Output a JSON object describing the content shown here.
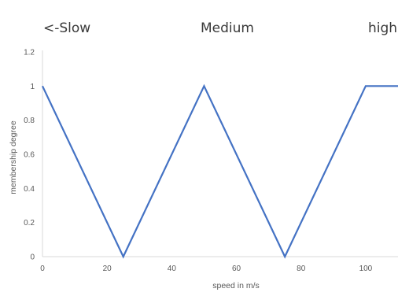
{
  "chart_data": {
    "type": "line",
    "title": "",
    "xlabel": "speed in m/s",
    "ylabel": "membership degree",
    "xlim": [
      0,
      110
    ],
    "ylim": [
      0,
      1.2
    ],
    "x_ticks": [
      "0",
      "20",
      "40",
      "60",
      "80",
      "100"
    ],
    "y_ticks": [
      "0",
      "0.2",
      "0.4",
      "0.6",
      "0.8",
      "1",
      "1.2"
    ],
    "grid": false,
    "legend": "none",
    "set_labels": [
      "<-Slow",
      "Medium",
      "high"
    ],
    "series": [
      {
        "color": "#4472c4",
        "points": [
          [
            0,
            1
          ],
          [
            25,
            0
          ],
          [
            50,
            1
          ],
          [
            75,
            0
          ],
          [
            100,
            1
          ],
          [
            110,
            1
          ]
        ]
      }
    ]
  }
}
